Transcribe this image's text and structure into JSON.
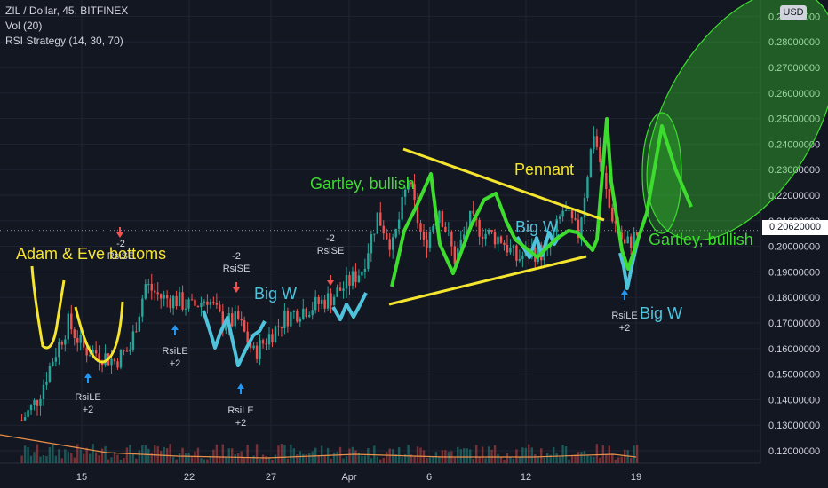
{
  "header": {
    "symbol_line": "ZIL / Dollar, 45, BITFINEX",
    "vol_line": "Vol (20)",
    "strategy_line": "RSI Strategy (14, 30, 70)",
    "currency_badge": "USD",
    "last_price": "0.20620000"
  },
  "chart_data": {
    "type": "candlestick",
    "symbol": "ZIL / Dollar",
    "interval": "45",
    "exchange": "BITFINEX",
    "x_tick_labels": [
      "15",
      "22",
      "27",
      "Apr",
      "6",
      "12",
      "19"
    ],
    "y_tick_labels": [
      "0.12000000",
      "0.13000000",
      "0.14000000",
      "0.15000000",
      "0.16000000",
      "0.17000000",
      "0.18000000",
      "0.19000000",
      "0.20000000",
      "0.21000000",
      "0.22000000",
      "0.23000000",
      "0.24000000",
      "0.25000000",
      "0.26000000",
      "0.27000000",
      "0.28000000",
      "0.29000000"
    ],
    "ylim": [
      0.116,
      0.292
    ],
    "last_price": 0.2062,
    "price_path": [
      [
        9,
        0.132
      ],
      [
        10,
        0.14
      ],
      [
        11,
        0.156
      ],
      [
        12,
        0.17
      ],
      [
        13,
        0.16
      ],
      [
        14,
        0.158
      ],
      [
        15,
        0.155
      ],
      [
        16,
        0.16
      ],
      [
        17,
        0.185
      ],
      [
        18,
        0.18
      ],
      [
        19,
        0.179
      ],
      [
        20,
        0.176
      ],
      [
        21,
        0.18
      ],
      [
        22,
        0.17
      ],
      [
        23,
        0.171
      ],
      [
        24,
        0.158
      ],
      [
        25,
        0.165
      ],
      [
        26,
        0.172
      ],
      [
        27,
        0.175
      ],
      [
        28,
        0.177
      ],
      [
        29,
        0.18
      ],
      [
        30,
        0.185
      ],
      [
        31,
        0.191
      ],
      [
        32,
        0.212
      ],
      [
        33,
        0.2
      ],
      [
        34,
        0.226
      ],
      [
        35,
        0.2
      ],
      [
        36,
        0.215
      ],
      [
        37,
        0.195
      ],
      [
        38,
        0.21
      ],
      [
        39,
        0.205
      ],
      [
        40,
        0.203
      ],
      [
        41,
        0.195
      ],
      [
        42,
        0.198
      ],
      [
        43,
        0.197
      ],
      [
        44,
        0.214
      ],
      [
        45,
        0.205
      ],
      [
        46,
        0.245
      ],
      [
        47,
        0.215
      ],
      [
        48,
        0.2
      ],
      [
        49,
        0.206
      ]
    ],
    "volume_path": [
      [
        9,
        0.3
      ],
      [
        12,
        0.6
      ],
      [
        15,
        0.4
      ],
      [
        18,
        0.55
      ],
      [
        21,
        0.3
      ],
      [
        24,
        0.45
      ],
      [
        27,
        0.35
      ],
      [
        30,
        0.4
      ],
      [
        33,
        0.5
      ],
      [
        36,
        0.35
      ],
      [
        39,
        0.3
      ],
      [
        42,
        0.4
      ],
      [
        45,
        0.35
      ],
      [
        46,
        0.7
      ],
      [
        47,
        0.5
      ],
      [
        49,
        0.25
      ]
    ],
    "drawings": [
      {
        "kind": "green-zigzag",
        "points": [
          [
            32,
            0.185
          ],
          [
            35,
            0.226
          ],
          [
            36,
            0.19
          ],
          [
            38,
            0.22
          ],
          [
            40,
            0.195
          ],
          [
            42,
            0.2
          ],
          [
            43,
            0.212
          ],
          [
            44,
            0.196
          ],
          [
            45,
            0.248
          ],
          [
            46,
            0.19
          ],
          [
            47,
            0.245
          ],
          [
            48,
            0.215
          ]
        ]
      },
      {
        "kind": "upper-pennant-line",
        "points": [
          [
            33,
            0.237
          ],
          [
            44,
            0.209
          ]
        ]
      },
      {
        "kind": "lower-pennant-line",
        "points": [
          [
            33,
            0.182
          ],
          [
            44,
            0.196
          ]
        ]
      }
    ],
    "annotations": [
      {
        "text": "Adam & Eve bottoms",
        "color": "#f5e52f"
      },
      {
        "text": "Big W",
        "color": "#4fc3dc"
      },
      {
        "text": "Gartley, bullish",
        "color": "#3ddc2f"
      },
      {
        "text": "Pennant",
        "color": "#f5e52f"
      },
      {
        "text": "Big W",
        "color": "#4fc3dc"
      },
      {
        "text": "Gartley, bullish",
        "color": "#3ddc2f"
      },
      {
        "text": "Big W",
        "color": "#4fc3dc"
      }
    ],
    "signals": [
      {
        "type": "RsiLE",
        "line1": "RsiLE",
        "line2": "+2",
        "arrow": "up"
      },
      {
        "type": "RsiLE",
        "line1": "RsiLE",
        "line2": "+2",
        "arrow": "up"
      },
      {
        "type": "RsiLE",
        "line1": "RsiLE",
        "line2": "+2",
        "arrow": "up"
      },
      {
        "type": "RsiLE",
        "line1": "RsiLE",
        "line2": "+2",
        "arrow": "up"
      },
      {
        "type": "RsiSE",
        "line1": "-2",
        "line2": "RsiSE",
        "arrow": "down"
      },
      {
        "type": "RsiSE",
        "line1": "-2",
        "line2": "RsiSE",
        "arrow": "down"
      },
      {
        "type": "RsiSE",
        "line1": "-2",
        "line2": "RsiSE",
        "arrow": "down"
      }
    ],
    "colors": {
      "background": "#131722",
      "up": "#26a69a",
      "down": "#ef5350",
      "green": "#3ddc2f",
      "yellow": "#f5e52f",
      "cyan": "#4fc3dc",
      "grid": "#1f2433"
    }
  }
}
